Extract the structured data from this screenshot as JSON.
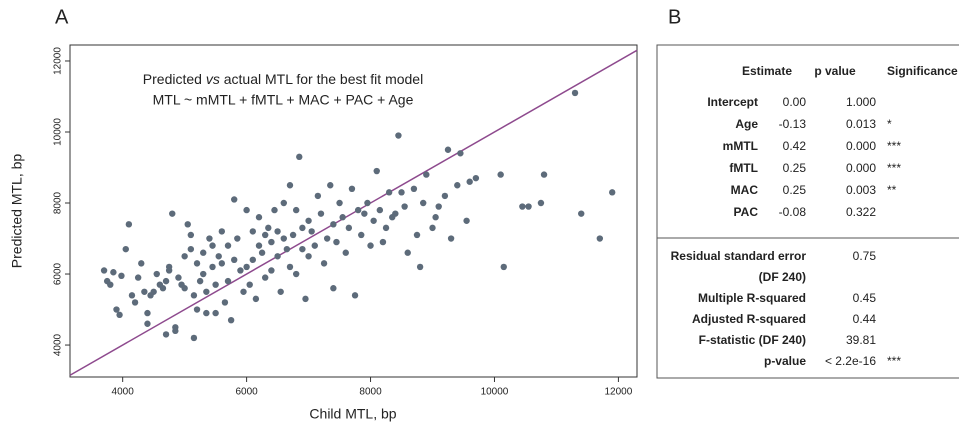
{
  "chart_data": {
    "type": "scatter",
    "panel_label": "A",
    "annotation": [
      "Predicted",
      "vs",
      "actual MTL for the best fit model"
    ],
    "annotation_line2": "MTL ~ mMTL + fMTL + MAC + PAC + Age",
    "xlabel": "Child MTL, bp",
    "ylabel": "Predicted MTL, bp",
    "xlim": [
      3150,
      12300
    ],
    "ylim": [
      3100,
      12450
    ],
    "xticks": [
      4000,
      6000,
      8000,
      10000,
      12000
    ],
    "yticks": [
      4000,
      6000,
      8000,
      10000,
      12000
    ],
    "grid": false,
    "color": "#5d6b7a",
    "line_color": "#8e4a8e",
    "x": [
      3700,
      3750,
      3800,
      3850,
      3900,
      3950,
      3980,
      4050,
      4100,
      4150,
      4200,
      4250,
      4300,
      4350,
      4400,
      4400,
      4450,
      4500,
      4550,
      4600,
      4650,
      4700,
      4700,
      4750,
      4750,
      4800,
      4850,
      4850,
      4900,
      4950,
      5000,
      5000,
      5050,
      5100,
      5100,
      5150,
      5150,
      5200,
      5200,
      5250,
      5300,
      5300,
      5350,
      5350,
      5400,
      5450,
      5450,
      5500,
      5500,
      5550,
      5600,
      5600,
      5650,
      5700,
      5700,
      5750,
      5800,
      5800,
      5850,
      5900,
      5950,
      6000,
      6000,
      6050,
      6100,
      6100,
      6150,
      6200,
      6200,
      6250,
      6300,
      6300,
      6350,
      6400,
      6400,
      6450,
      6500,
      6500,
      6550,
      6600,
      6600,
      6650,
      6700,
      6700,
      6750,
      6800,
      6800,
      6850,
      6900,
      6900,
      6950,
      7000,
      7000,
      7050,
      7100,
      7150,
      7200,
      7250,
      7300,
      7350,
      7400,
      7400,
      7450,
      7500,
      7550,
      7600,
      7650,
      7700,
      7750,
      7800,
      7850,
      7900,
      7950,
      8000,
      8050,
      8100,
      8150,
      8200,
      8250,
      8300,
      8350,
      8400,
      8450,
      8500,
      8550,
      8600,
      8700,
      8750,
      8800,
      8850,
      8900,
      9000,
      9050,
      9100,
      9200,
      9250,
      9300,
      9400,
      9450,
      9550,
      9600,
      9700,
      10100,
      10150,
      10450,
      10550,
      10750,
      10800,
      11300,
      11400,
      11700,
      11900
    ],
    "y": [
      6100,
      5800,
      5700,
      6050,
      5000,
      4850,
      5950,
      6700,
      7400,
      5400,
      5200,
      5900,
      6300,
      5500,
      4900,
      4600,
      5400,
      5500,
      6000,
      5700,
      5600,
      5800,
      4300,
      6200,
      6100,
      7700,
      4500,
      4400,
      5900,
      5700,
      5600,
      6500,
      7400,
      7100,
      6700,
      5400,
      4200,
      6300,
      5000,
      5800,
      6600,
      6000,
      5500,
      4900,
      7000,
      6800,
      6200,
      5700,
      4900,
      6500,
      7200,
      6300,
      5200,
      6800,
      5800,
      4700,
      8100,
      6400,
      7000,
      6100,
      5500,
      7800,
      6200,
      5700,
      7200,
      6400,
      5300,
      7600,
      6800,
      6600,
      7100,
      5900,
      7300,
      6900,
      6100,
      7800,
      7200,
      6500,
      5500,
      7000,
      8000,
      6700,
      8500,
      6200,
      7100,
      7800,
      6000,
      9300,
      7300,
      6700,
      5300,
      7500,
      6500,
      7200,
      6800,
      8200,
      7700,
      6300,
      7000,
      8500,
      7400,
      5600,
      6900,
      8000,
      7600,
      6600,
      7300,
      8400,
      5400,
      7800,
      7100,
      7700,
      8000,
      6800,
      7500,
      8900,
      7800,
      6900,
      7300,
      8300,
      7600,
      7700,
      9900,
      8300,
      7900,
      6600,
      8400,
      7100,
      6200,
      8000,
      8800,
      7300,
      7600,
      7900,
      8200,
      9500,
      7000,
      8500,
      9400,
      7500,
      8600,
      8700,
      8800,
      6200,
      7900,
      7900,
      8000,
      8800,
      11100,
      7700,
      7000,
      8300
    ]
  },
  "table": {
    "panel_label": "B",
    "header": [
      "Estimate",
      "p value",
      "Significance"
    ],
    "rows": [
      {
        "label": "Intercept",
        "estimate": "0.00",
        "p": "1.000"
      },
      {
        "label": "Age",
        "estimate": "-0.13",
        "p": "0.013",
        "sig": "*"
      },
      {
        "label": "mMTL",
        "estimate": "0.42",
        "p": "0.000",
        "sig": "***"
      },
      {
        "label": "fMTL",
        "estimate": "0.25",
        "p": "0.000",
        "sig": "***"
      },
      {
        "label": "MAC",
        "estimate": "0.25",
        "p": "0.003",
        "sig": "**"
      },
      {
        "label": "PAC",
        "estimate": "-0.08",
        "p": "0.322"
      }
    ],
    "stats": [
      {
        "label": "Residual standard error",
        "label2": "(DF 240)",
        "value": "0.75"
      },
      {
        "label": "Multiple R-squared",
        "value": "0.45"
      },
      {
        "label": "Adjusted R-squared",
        "value": "0.44"
      },
      {
        "label": "F-statistic (DF 240)",
        "value": "39.81"
      },
      {
        "label": "p-value",
        "value": "< 2.2e-16",
        "sig": "***"
      }
    ]
  }
}
